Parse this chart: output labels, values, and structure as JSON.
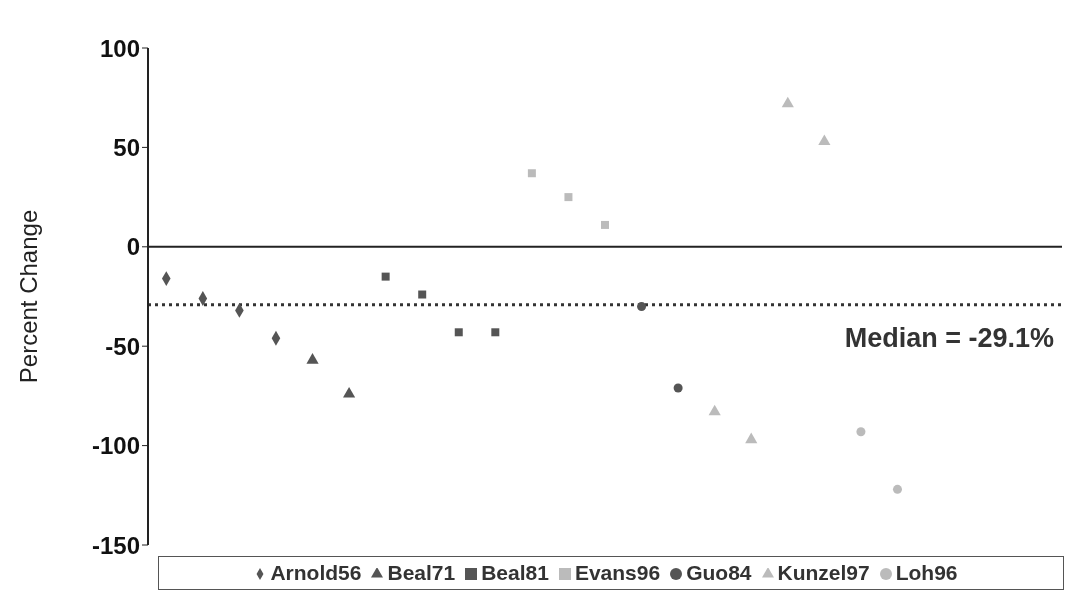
{
  "chart_data": {
    "type": "scatter",
    "ylabel": "Percent Change",
    "categories": [
      null,
      null,
      null,
      null,
      null,
      null,
      null,
      null,
      null,
      null,
      null,
      null,
      null,
      null,
      null,
      null,
      null,
      null,
      null,
      null,
      null,
      null,
      null,
      null,
      null
    ],
    "ylim": [
      -150,
      100
    ],
    "yticks": [
      -150,
      -100,
      -50,
      0,
      50,
      100
    ],
    "tick_labels": "y",
    "legend": "bottom",
    "series": [
      {
        "name": "Arnold56",
        "color": "#555555",
        "marker": "diamond",
        "values": [
          -16,
          -26,
          -32,
          -46,
          null,
          null,
          null,
          null,
          null,
          null,
          null,
          null,
          null,
          null,
          null,
          null,
          null,
          null,
          null,
          null,
          null,
          null,
          null,
          null,
          null
        ]
      },
      {
        "name": "Beal71",
        "color": "#555555",
        "marker": "triangle",
        "values": [
          null,
          null,
          null,
          null,
          -57,
          -74,
          null,
          null,
          null,
          null,
          null,
          null,
          null,
          null,
          null,
          null,
          null,
          null,
          null,
          null,
          null,
          null,
          null,
          null,
          null
        ]
      },
      {
        "name": "Beal81",
        "color": "#555555",
        "marker": "square",
        "values": [
          null,
          null,
          null,
          null,
          null,
          null,
          -15,
          -24,
          -43,
          -43,
          null,
          null,
          null,
          null,
          null,
          null,
          null,
          null,
          null,
          null,
          null,
          null,
          null,
          null,
          null
        ]
      },
      {
        "name": "Evans96",
        "color": "#bbbbbb",
        "marker": "square",
        "values": [
          null,
          null,
          null,
          null,
          null,
          null,
          null,
          null,
          null,
          null,
          37,
          25,
          11,
          null,
          null,
          null,
          null,
          null,
          null,
          null,
          null,
          null,
          null,
          null,
          null
        ]
      },
      {
        "name": "Guo84",
        "color": "#555555",
        "marker": "circle",
        "values": [
          null,
          null,
          null,
          null,
          null,
          null,
          null,
          null,
          null,
          null,
          null,
          null,
          null,
          -30,
          -71,
          null,
          null,
          null,
          null,
          null,
          null,
          null,
          null,
          null,
          null
        ]
      },
      {
        "name": "Kunzel97",
        "color": "#bbbbbb",
        "marker": "triangle",
        "values": [
          null,
          null,
          null,
          null,
          null,
          null,
          null,
          null,
          null,
          null,
          null,
          null,
          null,
          null,
          null,
          -83,
          -97,
          72,
          53,
          null,
          null,
          null,
          null,
          null,
          null
        ]
      },
      {
        "name": "Loh96",
        "color": "#bbbbbb",
        "marker": "circle",
        "values": [
          null,
          null,
          null,
          null,
          null,
          null,
          null,
          null,
          null,
          null,
          null,
          null,
          null,
          null,
          null,
          null,
          null,
          null,
          null,
          -93,
          -122,
          null,
          null,
          null,
          null
        ]
      }
    ],
    "ref_lines": [
      {
        "axis": "y",
        "value": 0,
        "color": "#222222",
        "line_style": "solid"
      },
      {
        "axis": "y",
        "value": -29.1,
        "label": "Median = -29.1%",
        "line_style": "dotted",
        "color": "#333333"
      }
    ]
  }
}
